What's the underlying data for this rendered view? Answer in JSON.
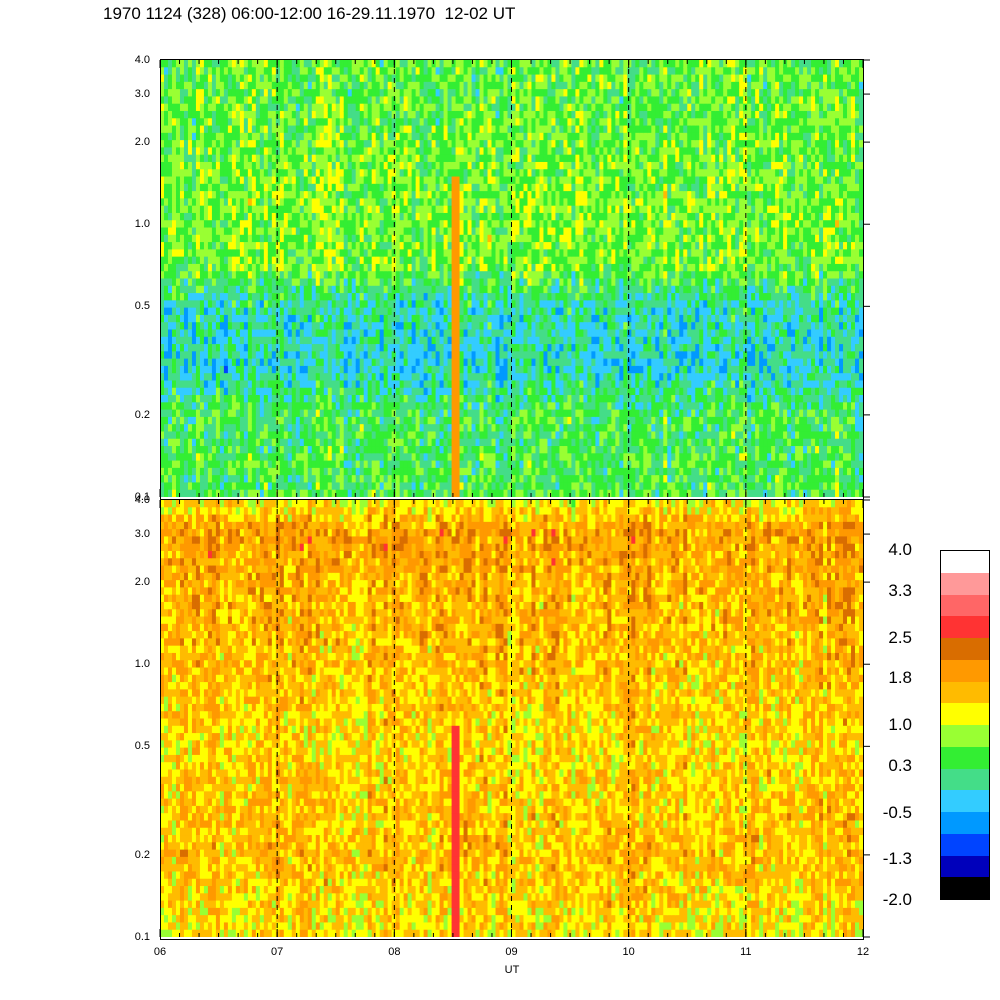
{
  "title": "1970 1124 (328) 06:00-12:00 16-29.11.1970  12-02 UT",
  "chart_data": [
    {
      "type": "heatmap",
      "panel": "upper",
      "x_ticks": [
        "06",
        "07",
        "08",
        "09",
        "10",
        "11",
        "12"
      ],
      "xlim": [
        6,
        12
      ],
      "y_ticks": [
        "0.1",
        "0.2",
        "0.5",
        "1.0",
        "2.0",
        "3.0",
        "4.0"
      ],
      "ylim": [
        0.1,
        4.0
      ],
      "y_scale": "log",
      "dashed_gridlines_x": [
        7,
        8,
        9,
        10,
        11
      ],
      "profile": [
        {
          "y": 0.1,
          "level": 0.4
        },
        {
          "y": 0.2,
          "level": 0.35
        },
        {
          "y": 0.3,
          "level": -0.2
        },
        {
          "y": 0.5,
          "level": 0.0
        },
        {
          "y": 0.7,
          "level": 0.6
        },
        {
          "y": 1.0,
          "level": 0.7
        },
        {
          "y": 2.0,
          "level": 0.6
        },
        {
          "y": 4.0,
          "level": 0.5
        }
      ],
      "features": [
        {
          "x": 8.5,
          "x_end": 8.55,
          "y_from": 0.1,
          "y_to": 1.5,
          "level": 1.9
        }
      ]
    },
    {
      "type": "heatmap",
      "panel": "lower",
      "x_ticks": [
        "06",
        "07",
        "08",
        "09",
        "10",
        "11",
        "12"
      ],
      "xlim": [
        6,
        12
      ],
      "y_ticks": [
        "0.1",
        "0.2",
        "0.5",
        "1.0",
        "2.0",
        "3.0",
        "4.0"
      ],
      "ylim": [
        0.1,
        4.0
      ],
      "y_scale": "log",
      "dashed_gridlines_x": [
        7,
        8,
        9,
        10,
        11
      ],
      "xlabel": "UT",
      "profile": [
        {
          "y": 0.1,
          "level": 1.3
        },
        {
          "y": 0.2,
          "level": 1.6
        },
        {
          "y": 0.5,
          "level": 1.4
        },
        {
          "y": 1.0,
          "level": 1.6
        },
        {
          "y": 2.0,
          "level": 1.7
        },
        {
          "y": 3.0,
          "level": 1.9
        },
        {
          "y": 4.0,
          "level": 1.2
        }
      ],
      "features": [
        {
          "x": 8.5,
          "x_end": 8.55,
          "y_from": 0.1,
          "y_to": 0.6,
          "level": 2.8
        }
      ]
    }
  ],
  "colorbar": {
    "labels": [
      "4.0",
      "3.3",
      "2.5",
      "1.8",
      "1.0",
      "0.3",
      "-0.5",
      "-1.3",
      "-2.0"
    ],
    "label_values": [
      4.0,
      3.3,
      2.5,
      1.8,
      1.0,
      0.3,
      -0.5,
      -1.3,
      -2.0
    ],
    "range": [
      -2.0,
      4.0
    ],
    "colors": [
      "#ffffff",
      "#ff9999",
      "#ff6666",
      "#ff3333",
      "#d96d00",
      "#ff9900",
      "#ffbb00",
      "#ffff00",
      "#99ff33",
      "#33ee33",
      "#44dd88",
      "#33ccff",
      "#0099ff",
      "#0044ff",
      "#0000bb",
      "#000000"
    ]
  }
}
